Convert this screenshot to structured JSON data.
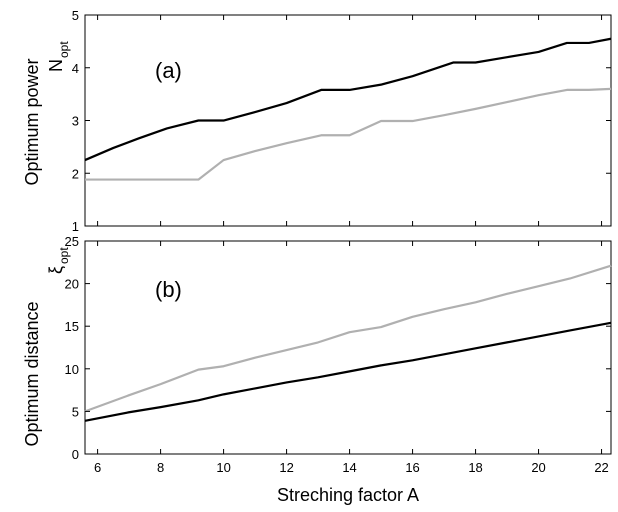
{
  "chart_data": [
    {
      "type": "line",
      "panel_label": "(a)",
      "ylabel": "Optimum power",
      "symbol": "N",
      "symbol_sub": "opt",
      "xlim": [
        5.6,
        22.3
      ],
      "ylim": [
        1,
        5
      ],
      "yticks": [
        "1",
        "2",
        "3",
        "4",
        "5"
      ],
      "xticks": [],
      "grid": false,
      "series": [
        {
          "color": "#000000",
          "x": [
            5.6,
            6.5,
            7.3,
            8.2,
            9.2,
            10.0,
            11.0,
            12.0,
            13.1,
            14.0,
            15.0,
            16.0,
            17.3,
            18.0,
            19.0,
            20.0,
            20.9,
            21.6,
            22.3
          ],
          "y": [
            2.25,
            2.48,
            2.66,
            2.85,
            3.0,
            3.0,
            3.16,
            3.33,
            3.58,
            3.58,
            3.68,
            3.84,
            4.1,
            4.1,
            4.2,
            4.3,
            4.47,
            4.47,
            4.55
          ]
        },
        {
          "color": "#b0b0b0",
          "x": [
            5.6,
            9.2,
            10.0,
            11.0,
            12.0,
            13.1,
            14.0,
            15.0,
            16.0,
            17.0,
            18.0,
            19.0,
            20.0,
            20.9,
            21.6,
            22.3
          ],
          "y": [
            1.88,
            1.88,
            2.25,
            2.42,
            2.57,
            2.72,
            2.72,
            2.99,
            2.99,
            3.1,
            3.22,
            3.35,
            3.48,
            3.58,
            3.58,
            3.6
          ]
        }
      ]
    },
    {
      "type": "line",
      "panel_label": "(b)",
      "ylabel": "Optimum distance",
      "symbol": "ξ",
      "symbol_sub": "opt",
      "xlabel": "Streching factor A",
      "xlim": [
        5.6,
        22.3
      ],
      "ylim": [
        0,
        25
      ],
      "yticks": [
        "0",
        "5",
        "10",
        "15",
        "20",
        "25"
      ],
      "xticks": [
        "6",
        "8",
        "10",
        "12",
        "14",
        "16",
        "18",
        "20",
        "22"
      ],
      "grid": false,
      "series": [
        {
          "color": "#000000",
          "x": [
            5.6,
            7.0,
            8.0,
            9.2,
            10.0,
            11.0,
            12.0,
            13.0,
            14.0,
            15.0,
            16.0,
            17.0,
            18.0,
            19.0,
            20.0,
            21.0,
            22.3
          ],
          "y": [
            3.9,
            4.9,
            5.5,
            6.3,
            7.0,
            7.7,
            8.4,
            9.0,
            9.7,
            10.4,
            11.0,
            11.7,
            12.4,
            13.1,
            13.8,
            14.5,
            15.4
          ]
        },
        {
          "color": "#b0b0b0",
          "x": [
            5.6,
            7.0,
            8.0,
            9.2,
            10.0,
            11.0,
            12.0,
            13.0,
            14.0,
            15.0,
            16.0,
            17.0,
            18.0,
            19.0,
            20.0,
            21.0,
            22.3
          ],
          "y": [
            5.0,
            6.9,
            8.2,
            9.9,
            10.3,
            11.3,
            12.2,
            13.1,
            14.3,
            14.9,
            16.1,
            17.0,
            17.8,
            18.8,
            19.7,
            20.6,
            22.1
          ]
        }
      ]
    }
  ]
}
